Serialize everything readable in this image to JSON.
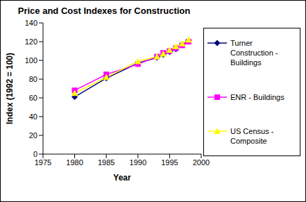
{
  "chart_data": {
    "type": "line",
    "title": "Price and Cost Indexes for Construction",
    "x_label": "Year",
    "y_label": "Index (1992 = 100)",
    "x": [
      1980,
      1985,
      1990,
      1993,
      1994,
      1995,
      1996,
      1997,
      1998
    ],
    "series": [
      {
        "name": "Turner Construction - Buildings",
        "color": "#000080",
        "marker": "diamond",
        "values": [
          61,
          81,
          97,
          103,
          106,
          109,
          112,
          117,
          121
        ]
      },
      {
        "name": "ENR - Buildings",
        "color": "#ff00ff",
        "marker": "square",
        "values": [
          68,
          85,
          96,
          104,
          108,
          110,
          113,
          116,
          120
        ]
      },
      {
        "name": "US Census - Composite",
        "color": "#ffff00",
        "marker": "triangle",
        "values": [
          65,
          82,
          99,
          104,
          107,
          111,
          115,
          118,
          122
        ]
      }
    ],
    "xlim": [
      1975,
      2000
    ],
    "xticks": [
      1975,
      1980,
      1985,
      1990,
      1995,
      2000
    ],
    "ylim": [
      0,
      140
    ],
    "yticks": [
      0,
      20,
      40,
      60,
      80,
      100,
      120,
      140
    ],
    "grid": false,
    "legend": "right"
  }
}
